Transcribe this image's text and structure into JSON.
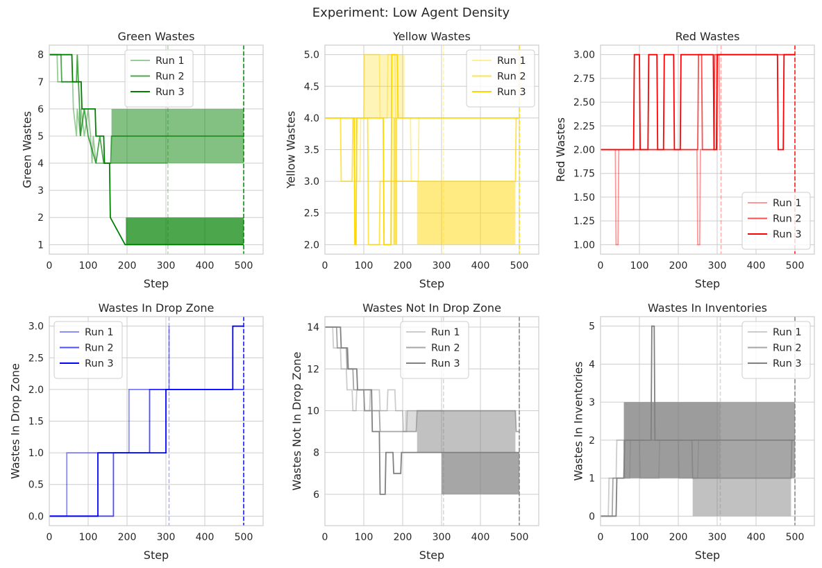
{
  "figure": {
    "title": "Experiment: Low Agent Density"
  },
  "chart_data": [
    {
      "type": "line",
      "title": "Green Wastes",
      "xlabel": "Step",
      "ylabel": "Green Wastes",
      "xlim": [
        0,
        550
      ],
      "ylim": [
        0.65,
        8.35
      ],
      "xticks": [
        0,
        100,
        200,
        300,
        400,
        500
      ],
      "yticks": [
        1,
        2,
        3,
        4,
        5,
        6,
        7,
        8
      ],
      "ytick_labels": [
        "1",
        "2",
        "3",
        "4",
        "5",
        "6",
        "7",
        "8"
      ],
      "legend": "upper center",
      "color": "#008000",
      "vlines": [
        {
          "x": 305,
          "alpha": 0.3
        },
        {
          "x": 500,
          "alpha": 0.9
        }
      ],
      "series": [
        {
          "name": "Run 1",
          "alpha": 0.4,
          "x": [
            0,
            20,
            22,
            60,
            62,
            70,
            72,
            80,
            82,
            90,
            100,
            106,
            110,
            113,
            120,
            130,
            305
          ],
          "y": [
            8,
            8,
            7,
            7,
            6,
            5,
            6,
            5,
            6,
            5,
            6,
            5,
            4,
            5,
            4,
            4,
            4
          ]
        },
        {
          "name": "Run 2",
          "alpha": 0.7,
          "x": [
            0,
            30,
            32,
            70,
            72,
            78,
            80,
            90,
            100,
            120,
            130,
            140,
            158,
            160,
            500
          ],
          "y": [
            8,
            8,
            7,
            7,
            8,
            6,
            5,
            6,
            5,
            4,
            5,
            4,
            4,
            5,
            5
          ],
          "band": {
            "x0": 160,
            "x1": 500,
            "y0": 4,
            "y1": 6
          }
        },
        {
          "name": "Run 3",
          "alpha": 1.0,
          "x": [
            0,
            58,
            60,
            82,
            84,
            118,
            120,
            140,
            142,
            155,
            157,
            195,
            197,
            500
          ],
          "y": [
            8,
            8,
            7,
            7,
            6,
            6,
            5,
            5,
            4,
            4,
            2,
            1,
            1,
            1
          ],
          "band": {
            "x0": 197,
            "x1": 500,
            "y0": 1,
            "y1": 2
          }
        }
      ]
    },
    {
      "type": "line",
      "title": "Yellow Wastes",
      "xlabel": "Step",
      "ylabel": "Yellow Wastes",
      "xlim": [
        0,
        550
      ],
      "ylim": [
        1.85,
        5.15
      ],
      "xticks": [
        0,
        100,
        200,
        300,
        400,
        500
      ],
      "yticks": [
        2.0,
        2.5,
        3.0,
        3.5,
        4.0,
        4.5,
        5.0
      ],
      "ytick_labels": [
        "2.0",
        "2.5",
        "3.0",
        "3.5",
        "4.0",
        "4.5",
        "5.0"
      ],
      "legend": "upper right",
      "color": "#ffd700",
      "vlines": [
        {
          "x": 305,
          "alpha": 0.3
        },
        {
          "x": 500,
          "alpha": 0.9
        }
      ],
      "series": [
        {
          "name": "Run 1",
          "alpha": 0.4,
          "x": [
            0,
            80,
            82,
            90,
            92,
            100,
            102,
            140,
            142,
            160,
            162,
            180,
            182,
            220,
            222,
            240,
            242,
            305
          ],
          "y": [
            4,
            4,
            3,
            3,
            4,
            4,
            5,
            5,
            4,
            4,
            5,
            5,
            4,
            4,
            3,
            3,
            4,
            4
          ],
          "band": {
            "x0": 100,
            "x1": 205,
            "y0": 4,
            "y1": 5
          }
        },
        {
          "name": "Run 2",
          "alpha": 0.7,
          "x": [
            0,
            40,
            42,
            70,
            72,
            110,
            112,
            140,
            142,
            235,
            237,
            490,
            492,
            500
          ],
          "y": [
            4,
            4,
            3,
            3,
            4,
            4,
            2,
            2,
            3,
            3,
            3,
            3,
            4,
            4
          ],
          "band": {
            "x0": 237,
            "x1": 490,
            "y0": 2,
            "y1": 3
          }
        },
        {
          "name": "Run 3",
          "alpha": 1.0,
          "x": [
            0,
            75,
            77,
            80,
            82,
            150,
            152,
            170,
            172,
            186,
            188,
            500
          ],
          "y": [
            4,
            4,
            2,
            2,
            4,
            4,
            2,
            2,
            5,
            5,
            4,
            4
          ],
          "band": {
            "x0": 176,
            "x1": 186,
            "y0": 2,
            "y1": 4
          }
        }
      ]
    },
    {
      "type": "line",
      "title": "Red Wastes",
      "xlabel": "Step",
      "ylabel": "Red Wastes",
      "xlim": [
        0,
        550
      ],
      "ylim": [
        0.9,
        3.1
      ],
      "xticks": [
        0,
        100,
        200,
        300,
        400,
        500
      ],
      "yticks": [
        1.0,
        1.25,
        1.5,
        1.75,
        2.0,
        2.25,
        2.5,
        2.75,
        3.0
      ],
      "ytick_labels": [
        "1.00",
        "1.25",
        "1.50",
        "1.75",
        "2.00",
        "2.25",
        "2.50",
        "2.75",
        "3.00"
      ],
      "legend": "lower right",
      "color": "#ff0000",
      "vlines": [
        {
          "x": 310,
          "alpha": 0.3
        },
        {
          "x": 500,
          "alpha": 0.9
        }
      ],
      "series": [
        {
          "name": "Run 1",
          "alpha": 0.4,
          "x": [
            0,
            38,
            40,
            45,
            47,
            248,
            250,
            255,
            257,
            300,
            302,
            305,
            307,
            310
          ],
          "y": [
            2,
            2,
            1,
            1,
            2,
            2,
            1,
            1,
            2,
            2,
            3,
            3,
            2,
            2
          ]
        },
        {
          "name": "Run 2",
          "alpha": 0.7,
          "x": [
            0,
            250,
            252,
            260,
            262,
            292,
            294,
            298,
            300,
            500
          ],
          "y": [
            2,
            2,
            3,
            3,
            2,
            2,
            3,
            3,
            3,
            3
          ]
        },
        {
          "name": "Run 3",
          "alpha": 1.0,
          "x": [
            0,
            85,
            87,
            100,
            102,
            122,
            124,
            145,
            147,
            162,
            164,
            188,
            190,
            205,
            207,
            290,
            292,
            298,
            300,
            455,
            457,
            470,
            472,
            500
          ],
          "y": [
            2,
            2,
            3,
            3,
            2,
            2,
            3,
            3,
            2,
            2,
            3,
            3,
            2,
            2,
            3,
            3,
            2,
            2,
            3,
            3,
            2,
            2,
            3,
            3
          ]
        }
      ]
    },
    {
      "type": "line",
      "title": "Wastes In Drop Zone",
      "xlabel": "Step",
      "ylabel": "Wastes In Drop Zone",
      "xlim": [
        0,
        550
      ],
      "ylim": [
        -0.15,
        3.15
      ],
      "xticks": [
        0,
        100,
        200,
        300,
        400,
        500
      ],
      "yticks": [
        0.0,
        0.5,
        1.0,
        1.5,
        2.0,
        2.5,
        3.0
      ],
      "ytick_labels": [
        "0.0",
        "0.5",
        "1.0",
        "1.5",
        "2.0",
        "2.5",
        "3.0"
      ],
      "legend": "upper left",
      "color": "#0000ff",
      "vlines": [
        {
          "x": 308,
          "alpha": 0.3
        },
        {
          "x": 500,
          "alpha": 0.9
        }
      ],
      "series": [
        {
          "name": "Run 1",
          "alpha": 0.45,
          "x": [
            0,
            45,
            45,
            205,
            205,
            308,
            308
          ],
          "y": [
            0,
            0,
            1,
            1,
            2,
            2,
            3
          ]
        },
        {
          "name": "Run 2",
          "alpha": 0.7,
          "x": [
            0,
            165,
            165,
            258,
            258,
            500
          ],
          "y": [
            0,
            0,
            1,
            1,
            2,
            2
          ]
        },
        {
          "name": "Run 3",
          "alpha": 1.0,
          "x": [
            0,
            125,
            125,
            300,
            300,
            472,
            472,
            500
          ],
          "y": [
            0,
            0,
            1,
            1,
            2,
            2,
            3,
            3
          ]
        }
      ]
    },
    {
      "type": "line",
      "title": "Wastes Not In Drop Zone",
      "xlabel": "Step",
      "ylabel": "Wastes Not In Drop Zone",
      "xlim": [
        0,
        550
      ],
      "ylim": [
        4.5,
        14.5
      ],
      "xticks": [
        0,
        100,
        200,
        300,
        400,
        500
      ],
      "yticks": [
        6,
        8,
        10,
        12,
        14
      ],
      "ytick_labels": [
        "6",
        "8",
        "10",
        "12",
        "14"
      ],
      "legend": "upper center",
      "color": "#808080",
      "vlines": [
        {
          "x": 305,
          "alpha": 0.3
        },
        {
          "x": 500,
          "alpha": 0.9
        }
      ],
      "series": [
        {
          "name": "Run 1",
          "alpha": 0.4,
          "x": [
            0,
            20,
            22,
            40,
            42,
            55,
            57,
            70,
            72,
            80,
            82,
            100,
            102,
            115,
            117,
            140,
            142,
            160,
            162,
            180,
            182,
            200,
            202,
            210,
            212,
            305
          ],
          "y": [
            14,
            14,
            13,
            13,
            12,
            12,
            11,
            11,
            10,
            10,
            11,
            11,
            10,
            10,
            11,
            11,
            10,
            10,
            11,
            11,
            10,
            10,
            9,
            9,
            10,
            10
          ],
          "band": {
            "x0": 205,
            "x1": 235,
            "y0": 9,
            "y1": 10
          }
        },
        {
          "name": "Run 2",
          "alpha": 0.7,
          "x": [
            0,
            30,
            32,
            55,
            57,
            72,
            74,
            100,
            102,
            140,
            142,
            235,
            237,
            490,
            492,
            500
          ],
          "y": [
            14,
            14,
            13,
            13,
            12,
            12,
            11,
            11,
            10,
            10,
            9,
            9,
            10,
            10,
            9,
            9
          ],
          "band": {
            "x0": 237,
            "x1": 490,
            "y0": 8,
            "y1": 10
          }
        },
        {
          "name": "Run 3",
          "alpha": 1.0,
          "x": [
            0,
            40,
            42,
            58,
            60,
            82,
            84,
            120,
            122,
            140,
            142,
            155,
            157,
            175,
            177,
            195,
            197,
            500
          ],
          "y": [
            14,
            14,
            13,
            13,
            12,
            12,
            11,
            11,
            9,
            9,
            6,
            6,
            8,
            8,
            7,
            7,
            8,
            8
          ],
          "band": {
            "x0": 300,
            "x1": 500,
            "y0": 6,
            "y1": 8
          }
        }
      ]
    },
    {
      "type": "line",
      "title": "Wastes In Inventories",
      "xlabel": "Step",
      "ylabel": "Wastes In Inventories",
      "xlim": [
        0,
        550
      ],
      "ylim": [
        -0.25,
        5.25
      ],
      "xticks": [
        0,
        100,
        200,
        300,
        400,
        500
      ],
      "yticks": [
        0,
        1,
        2,
        3,
        4,
        5
      ],
      "ytick_labels": [
        "0",
        "1",
        "2",
        "3",
        "4",
        "5"
      ],
      "legend": "upper right",
      "color": "#808080",
      "vlines": [
        {
          "x": 308,
          "alpha": 0.3
        },
        {
          "x": 500,
          "alpha": 0.9
        }
      ],
      "series": [
        {
          "name": "Run 1",
          "alpha": 0.4,
          "x": [
            0,
            20,
            22,
            40,
            42,
            60,
            62,
            75,
            77,
            100,
            102,
            150,
            152,
            200,
            202,
            250,
            252,
            308
          ],
          "y": [
            0,
            0,
            1,
            1,
            2,
            2,
            1,
            1,
            2,
            2,
            1,
            1,
            2,
            2,
            1,
            1,
            2,
            2
          ],
          "band": {
            "x0": 60,
            "x1": 308,
            "y0": 1,
            "y1": 3
          }
        },
        {
          "name": "Run 2",
          "alpha": 0.7,
          "x": [
            0,
            30,
            32,
            60,
            62,
            235,
            237,
            490,
            492,
            500
          ],
          "y": [
            0,
            0,
            1,
            1,
            2,
            2,
            1,
            1,
            2,
            2
          ],
          "band": {
            "x0": 237,
            "x1": 490,
            "y0": 0,
            "y1": 1
          }
        },
        {
          "name": "Run 3",
          "alpha": 1.0,
          "x": [
            0,
            40,
            42,
            60,
            62,
            130,
            132,
            138,
            140,
            500
          ],
          "y": [
            0,
            0,
            1,
            1,
            2,
            2,
            5,
            5,
            2,
            2
          ],
          "band": {
            "x0": 60,
            "x1": 500,
            "y0": 1,
            "y1": 3
          }
        }
      ]
    }
  ]
}
